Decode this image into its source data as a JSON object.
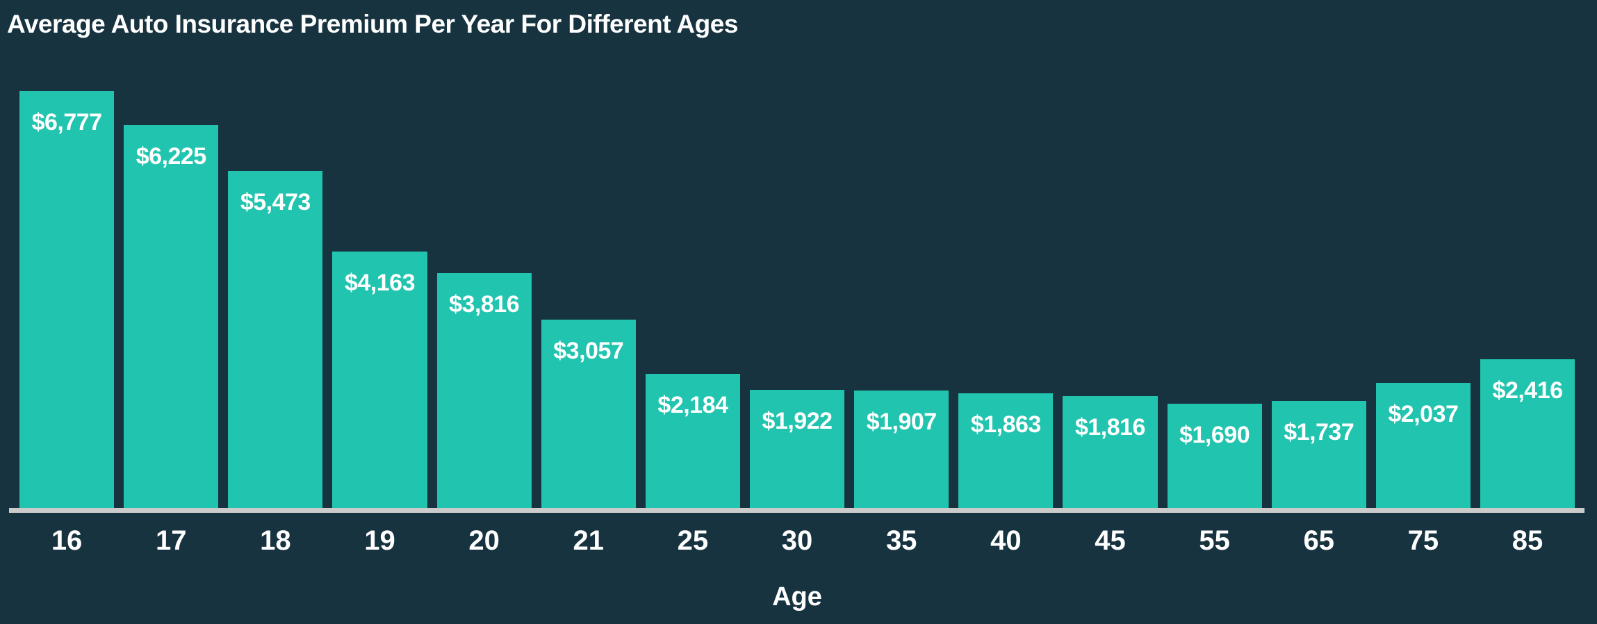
{
  "chart_data": {
    "type": "bar",
    "title": "Average Auto Insurance Premium Per Year For Different Ages",
    "xlabel": "Age",
    "ylabel": "",
    "categories": [
      "16",
      "17",
      "18",
      "19",
      "20",
      "21",
      "25",
      "30",
      "35",
      "40",
      "45",
      "55",
      "65",
      "75",
      "85"
    ],
    "values": [
      6777,
      6225,
      5473,
      4163,
      3816,
      3057,
      2184,
      1922,
      1907,
      1863,
      1816,
      1690,
      1737,
      2037,
      2416
    ],
    "value_labels": [
      "$6,777",
      "$6,225",
      "$5,473",
      "$4,163",
      "$3,816",
      "$3,057",
      "$2,184",
      "$1,922",
      "$1,907",
      "$1,863",
      "$1,816",
      "$1,690",
      "$1,737",
      "$2,037",
      "$2,416"
    ],
    "ylim": [
      0,
      6777
    ],
    "grid": false,
    "legend_position": "none",
    "colors": {
      "bar": "#21C4AE",
      "background": "#16333F",
      "text": "#FFFFFF",
      "axis_line": "#CBCBCB"
    }
  }
}
